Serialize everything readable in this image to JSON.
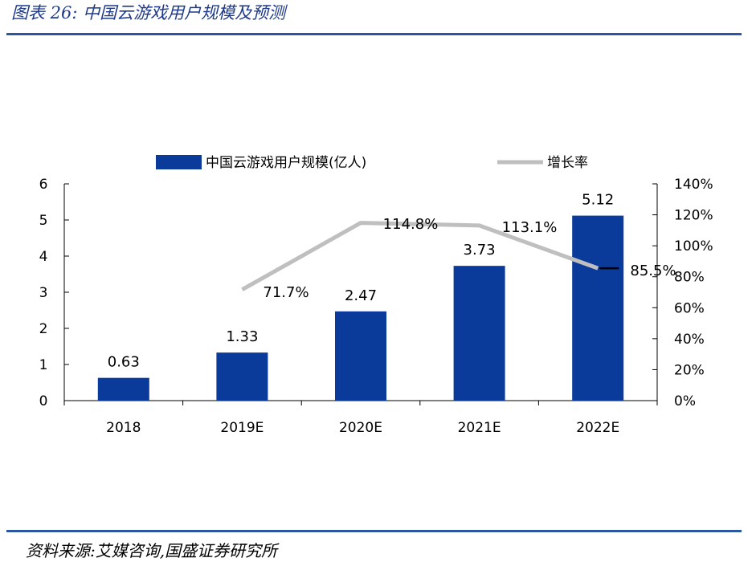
{
  "header": {
    "title": "图表 26:  中国云游戏用户规模及预测"
  },
  "footer": {
    "source": "资料来源:艾媒咨询,国盛证券研究所"
  },
  "colors": {
    "bar": "#0a3a9a",
    "line": "#bfbfbf",
    "rule": "#2a57a0",
    "title": "#1f3a8a"
  },
  "chart_data": {
    "type": "bar",
    "categories": [
      "2018",
      "2019E",
      "2020E",
      "2021E",
      "2022E"
    ],
    "series": [
      {
        "name": "中国云游戏用户规模(亿人)",
        "type": "bar",
        "axis": "left",
        "values": [
          0.63,
          1.33,
          2.47,
          3.73,
          5.12
        ],
        "labels": [
          "0.63",
          "1.33",
          "2.47",
          "3.73",
          "5.12"
        ]
      },
      {
        "name": "增长率",
        "type": "line",
        "axis": "right",
        "values": [
          null,
          71.7,
          114.8,
          113.1,
          85.5
        ],
        "labels": [
          "",
          "71.7%",
          "114.8%",
          "113.1%",
          "85.5%"
        ]
      }
    ],
    "y_left": {
      "min": 0,
      "max": 6,
      "ticks": [
        "0",
        "1",
        "2",
        "3",
        "4",
        "5",
        "6"
      ]
    },
    "y_right": {
      "min": 0,
      "max": 140,
      "ticks": [
        "0%",
        "20%",
        "40%",
        "60%",
        "80%",
        "100%",
        "120%",
        "140%"
      ]
    },
    "legend_position": "top",
    "grid": false
  }
}
